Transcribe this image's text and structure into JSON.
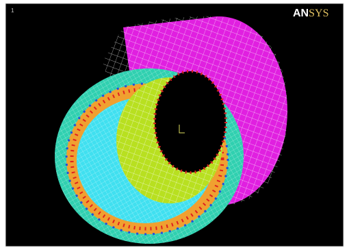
{
  "window": {
    "number": "1",
    "logo": [
      "AN",
      "SYS"
    ]
  }
}
